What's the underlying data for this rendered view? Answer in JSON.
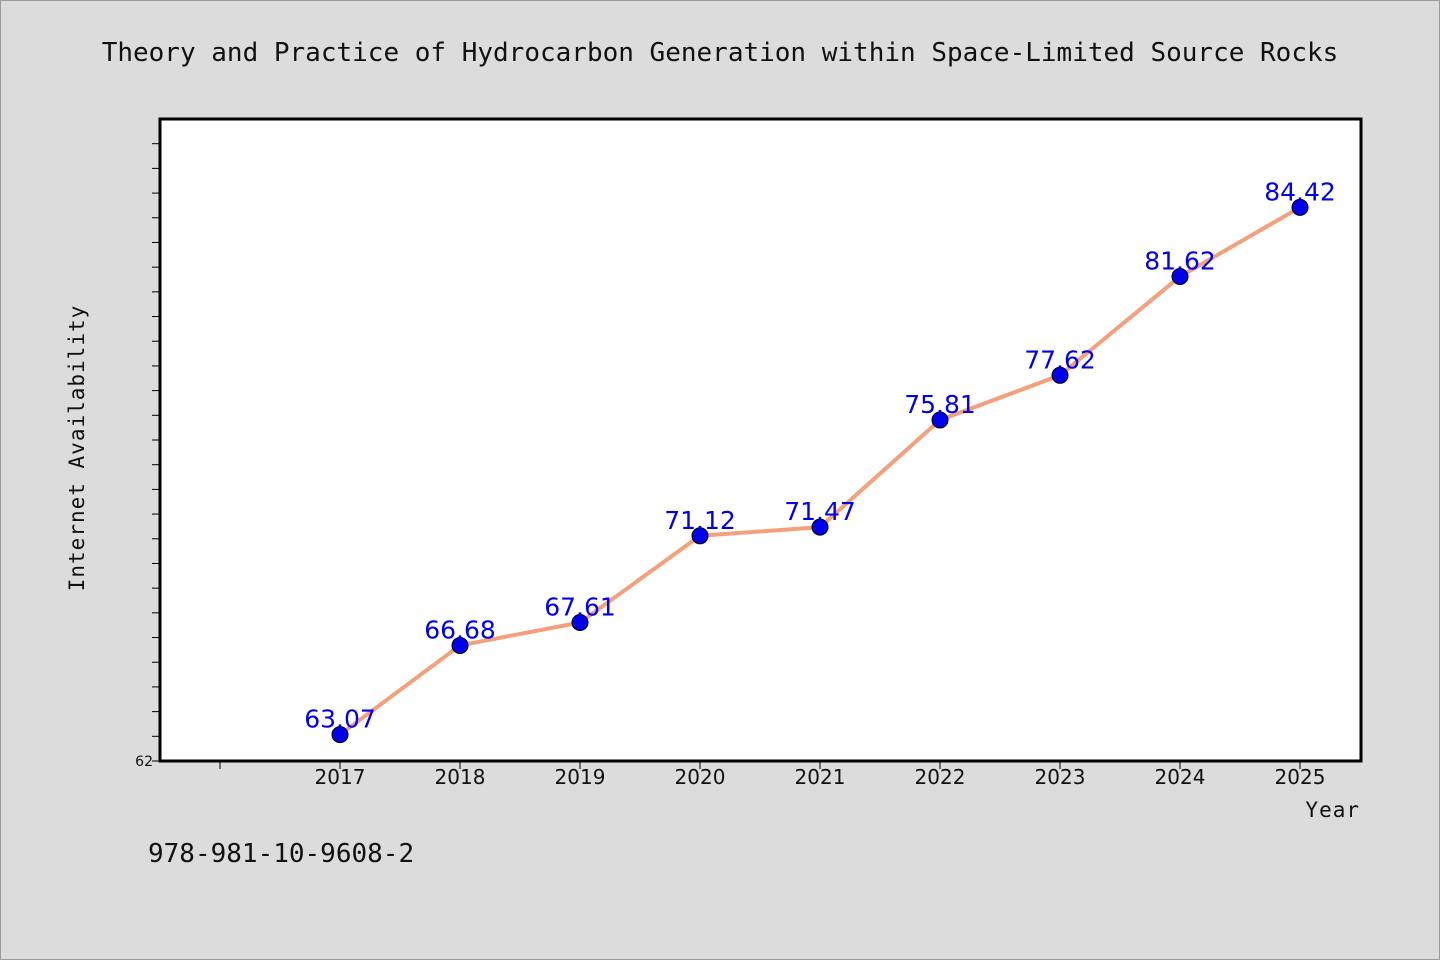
{
  "title": "Theory and Practice of Hydrocarbon Generation within Space-Limited Source Rocks",
  "footer_text": "978-981-10-9608-2",
  "chart_data": {
    "type": "line",
    "title": "Theory and Practice of Hydrocarbon Generation within Space-Limited Source Rocks",
    "xlabel": "Year",
    "ylabel": "Internet Availability",
    "categories": [
      "2017",
      "2018",
      "2019",
      "2020",
      "2021",
      "2022",
      "2023",
      "2024",
      "2025"
    ],
    "values": [
      63.07,
      66.68,
      67.61,
      71.12,
      71.47,
      75.81,
      77.62,
      81.62,
      84.42
    ],
    "data_labels": [
      "63.07",
      "66.68",
      "67.61",
      "71.12",
      "71.47",
      "75.81",
      "77.62",
      "81.62",
      "84.42"
    ],
    "ylim": [
      62,
      88
    ],
    "y_tick_labels_shown": [
      "62"
    ],
    "grid": false,
    "line_color": "#f4a07c",
    "marker_color": "#0000ee",
    "label_color": "#0000ee",
    "plot_background": "#ffffff",
    "figure_background": "#dcdcdc"
  }
}
